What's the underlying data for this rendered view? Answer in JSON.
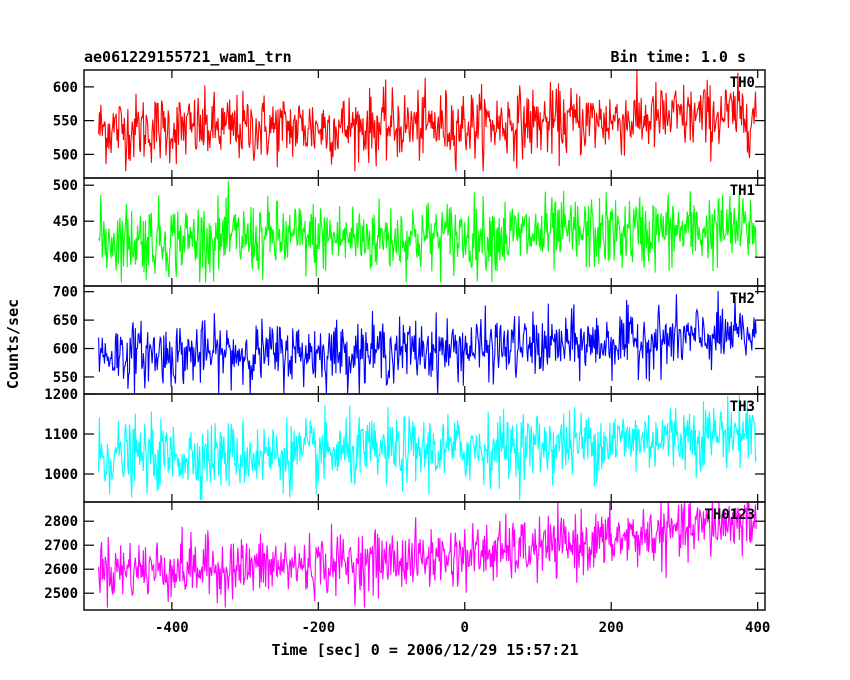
{
  "chart_data": {
    "type": "line",
    "title_left": "ae061229155721_wam1_trn",
    "title_right": "Bin time: 1.0 s",
    "xlabel": "Time [sec] 0 = 2006/12/29 15:57:21",
    "ylabel": "Counts/sec",
    "xlim": [
      -520,
      410
    ],
    "xticks": [
      -400,
      -200,
      0,
      200,
      400
    ],
    "x_start": -500,
    "x_end": 398,
    "bin_time": 1.0,
    "grid": false,
    "panels": [
      {
        "name": "TH0",
        "color": "#ff0000",
        "ylim": [
          465,
          625
        ],
        "yticks": [
          500,
          550,
          600
        ],
        "start_level": 538,
        "end_level": 560,
        "noise_amplitude": 30,
        "min": 475,
        "max": 625
      },
      {
        "name": "TH1",
        "color": "#00ff00",
        "ylim": [
          360,
          510
        ],
        "yticks": [
          400,
          450,
          500
        ],
        "start_level": 425,
        "end_level": 440,
        "noise_amplitude": 30,
        "min": 365,
        "max": 510
      },
      {
        "name": "TH2",
        "color": "#0000ff",
        "ylim": [
          520,
          710
        ],
        "yticks": [
          550,
          600,
          650,
          700
        ],
        "start_level": 590,
        "end_level": 625,
        "noise_amplitude": 32,
        "min": 520,
        "max": 710
      },
      {
        "name": "TH3",
        "color": "#00ffff",
        "ylim": [
          930,
          1200
        ],
        "yticks": [
          1000,
          1100,
          1200
        ],
        "start_level": 1045,
        "end_level": 1110,
        "noise_amplitude": 50,
        "min": 935,
        "max": 1200
      },
      {
        "name": "TH0123",
        "color": "#ff00ff",
        "ylim": [
          2430,
          2880
        ],
        "yticks": [
          2500,
          2600,
          2700,
          2800
        ],
        "start_level": 2600,
        "end_level": 2810,
        "noise_amplitude": 75,
        "min": 2440,
        "max": 2880
      }
    ]
  }
}
